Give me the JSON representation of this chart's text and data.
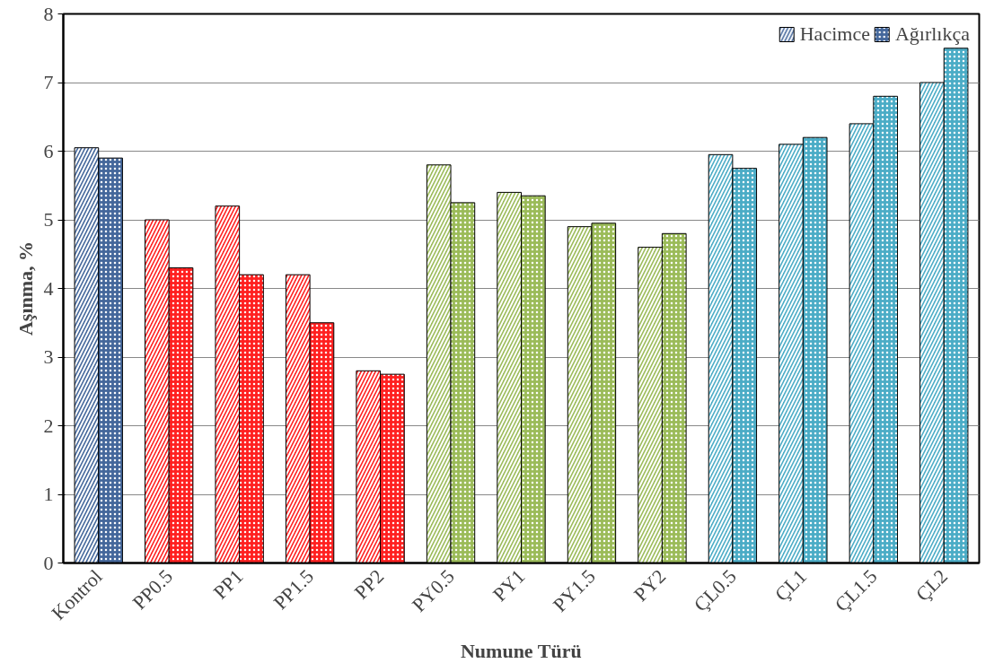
{
  "chart_data": {
    "type": "bar",
    "xlabel": "Numune Türü",
    "ylabel": "Aşınma, %",
    "categories": [
      "Kontrol",
      "PP0.5",
      "PP1",
      "PP1.5",
      "PP2",
      "PY0.5",
      "PY1",
      "PY1.5",
      "PY2",
      "ÇL0.5",
      "ÇL1",
      "ÇL1.5",
      "ÇL2"
    ],
    "series": [
      {
        "name": "Hacimce",
        "colors": [
          "#44679b",
          "#ff2020",
          "#ff2020",
          "#ff2020",
          "#ff2020",
          "#9bbb59",
          "#9bbb59",
          "#9bbb59",
          "#9bbb59",
          "#4bacc6",
          "#4bacc6",
          "#4bacc6",
          "#4bacc6"
        ],
        "values": [
          6.05,
          5.0,
          5.2,
          4.2,
          2.8,
          5.8,
          5.4,
          4.9,
          4.6,
          5.95,
          6.1,
          6.4,
          7.0
        ]
      },
      {
        "name": "Ağırlıkça",
        "colors": [
          "#44679b",
          "#ff2020",
          "#ff2020",
          "#ff2020",
          "#ff2020",
          "#9bbb59",
          "#9bbb59",
          "#9bbb59",
          "#9bbb59",
          "#4bacc6",
          "#4bacc6",
          "#4bacc6",
          "#4bacc6"
        ],
        "values": [
          5.9,
          4.3,
          4.2,
          3.5,
          2.75,
          5.25,
          5.35,
          4.95,
          4.8,
          5.75,
          6.2,
          6.8,
          7.5
        ]
      }
    ],
    "ylim": [
      0,
      8
    ],
    "yticks": [
      0,
      1,
      2,
      3,
      4,
      5,
      6,
      7,
      8
    ],
    "grid": "y",
    "legend": "top right"
  }
}
